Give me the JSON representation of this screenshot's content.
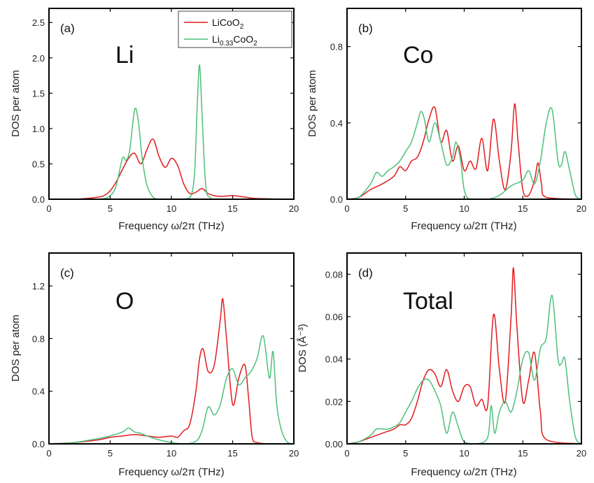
{
  "colors": {
    "LiCoO2": "#e31a1c",
    "Li033CoO2": "#4cc07a"
  },
  "legend": {
    "entries": [
      {
        "series": "LiCoO2",
        "parts": [
          "LiCoO",
          "2"
        ]
      },
      {
        "series": "Li033CoO2",
        "parts": [
          "Li",
          "0.33",
          "CoO",
          "2"
        ]
      }
    ]
  },
  "chart_data": [
    {
      "type": "line",
      "panel": "(a)",
      "element": "Li",
      "xlabel": "Frequency ω/2π (THz)",
      "ylabel": "DOS per atom",
      "xlim": [
        0,
        20
      ],
      "ylim": [
        0,
        2.7
      ],
      "xticks": [
        "0",
        "5",
        "10",
        "15",
        "20"
      ],
      "yticks": [
        "0.0",
        "0.5",
        "1.0",
        "1.5",
        "2.0",
        "2.5"
      ],
      "series": [
        {
          "name": "LiCoO2",
          "x": [
            0,
            2,
            3,
            4,
            4.5,
            5,
            5.5,
            6,
            6.5,
            7,
            7.5,
            8,
            8.5,
            9,
            9.5,
            10,
            10.5,
            11,
            11.5,
            12,
            12.5,
            13,
            13.5,
            14,
            15,
            16,
            17,
            20
          ],
          "y": [
            0,
            0,
            0.01,
            0.03,
            0.05,
            0.12,
            0.25,
            0.42,
            0.58,
            0.65,
            0.5,
            0.7,
            0.85,
            0.6,
            0.45,
            0.58,
            0.48,
            0.22,
            0.08,
            0.1,
            0.15,
            0.08,
            0.05,
            0.04,
            0.05,
            0.03,
            0.01,
            0
          ]
        },
        {
          "name": "Li0.33CoO2",
          "x": [
            0,
            4,
            5,
            5.5,
            6,
            6.3,
            6.6,
            7,
            7.3,
            7.6,
            8,
            8.5,
            9,
            10,
            11,
            11.6,
            11.9,
            12.1,
            12.3,
            12.5,
            12.8,
            13.2,
            14,
            20
          ],
          "y": [
            0,
            0,
            0.05,
            0.2,
            0.58,
            0.55,
            0.7,
            1.27,
            1.1,
            0.6,
            0.2,
            0.03,
            0,
            0,
            0,
            0.05,
            0.4,
            1.3,
            1.9,
            1.2,
            0.2,
            0.02,
            0,
            0
          ]
        }
      ]
    },
    {
      "type": "line",
      "panel": "(b)",
      "element": "Co",
      "xlabel": "Frequency ω/2π (THz)",
      "ylabel": "DOS per atom",
      "xlim": [
        0,
        20
      ],
      "ylim": [
        0,
        1.0
      ],
      "xticks": [
        "0",
        "5",
        "10",
        "15",
        "20"
      ],
      "yticks": [
        "0.0",
        "0.4",
        "0.8"
      ],
      "series": [
        {
          "name": "LiCoO2",
          "x": [
            0,
            1,
            2,
            3,
            4,
            4.5,
            5,
            5.5,
            6,
            6.5,
            7,
            7.5,
            8,
            8.5,
            9,
            9.5,
            10,
            10.5,
            11,
            11.5,
            12,
            12.5,
            13,
            13.5,
            14,
            14.3,
            14.6,
            15,
            15.5,
            16,
            16.3,
            16.6,
            17,
            20
          ],
          "y": [
            0,
            0.01,
            0.05,
            0.08,
            0.12,
            0.17,
            0.15,
            0.2,
            0.22,
            0.3,
            0.42,
            0.48,
            0.3,
            0.36,
            0.2,
            0.28,
            0.15,
            0.2,
            0.16,
            0.32,
            0.15,
            0.42,
            0.2,
            0.05,
            0.25,
            0.5,
            0.3,
            0.05,
            0.02,
            0.1,
            0.19,
            0.08,
            0.01,
            0
          ]
        },
        {
          "name": "Li0.33CoO2",
          "x": [
            0,
            1,
            2,
            2.5,
            3,
            3.5,
            4,
            4.5,
            5,
            5.5,
            6,
            6.3,
            6.6,
            7,
            7.5,
            8,
            8.5,
            9,
            9.3,
            9.7,
            10,
            10.5,
            12,
            13,
            14,
            15,
            15.5,
            16,
            16.5,
            17,
            17.5,
            18,
            18.3,
            18.6,
            19,
            19.5,
            20
          ],
          "y": [
            0,
            0.01,
            0.08,
            0.14,
            0.12,
            0.15,
            0.17,
            0.2,
            0.25,
            0.3,
            0.4,
            0.46,
            0.42,
            0.3,
            0.4,
            0.3,
            0.18,
            0.22,
            0.3,
            0.2,
            0.05,
            0,
            0,
            0.02,
            0.07,
            0.1,
            0.15,
            0.08,
            0.2,
            0.4,
            0.47,
            0.2,
            0.18,
            0.25,
            0.15,
            0.02,
            0
          ]
        }
      ]
    },
    {
      "type": "line",
      "panel": "(c)",
      "element": "O",
      "xlabel": "Frequency ω/2π (THz)",
      "ylabel": "DOS per atom",
      "xlim": [
        0,
        20
      ],
      "ylim": [
        0,
        1.45
      ],
      "xticks": [
        "0",
        "5",
        "10",
        "15",
        "20"
      ],
      "yticks": [
        "0.0",
        "0.4",
        "0.8",
        "1.2"
      ],
      "series": [
        {
          "name": "LiCoO2",
          "x": [
            0,
            2,
            4,
            5,
            6,
            7,
            8,
            9,
            10,
            10.5,
            11,
            11.5,
            12,
            12.3,
            12.6,
            13,
            13.5,
            14,
            14.2,
            14.5,
            15,
            15.5,
            16,
            16.3,
            16.6,
            17,
            18,
            20
          ],
          "y": [
            0,
            0.01,
            0.03,
            0.05,
            0.06,
            0.07,
            0.06,
            0.05,
            0.06,
            0.05,
            0.1,
            0.15,
            0.4,
            0.65,
            0.72,
            0.55,
            0.6,
            0.95,
            1.1,
            0.8,
            0.3,
            0.5,
            0.6,
            0.35,
            0.05,
            0.01,
            0,
            0
          ]
        },
        {
          "name": "Li0.33CoO2",
          "x": [
            0,
            2,
            4,
            5,
            6,
            6.5,
            7,
            7.5,
            8,
            9,
            10,
            11,
            12,
            12.5,
            13,
            13.5,
            14,
            14.5,
            15,
            15.5,
            16,
            16.5,
            17,
            17.5,
            18,
            18.3,
            18.6,
            19,
            19.5,
            20
          ],
          "y": [
            0,
            0.01,
            0.04,
            0.06,
            0.09,
            0.12,
            0.09,
            0.08,
            0.06,
            0.03,
            0.01,
            0,
            0.02,
            0.1,
            0.28,
            0.22,
            0.3,
            0.5,
            0.57,
            0.45,
            0.5,
            0.55,
            0.65,
            0.82,
            0.5,
            0.7,
            0.3,
            0.1,
            0.01,
            0
          ]
        }
      ]
    },
    {
      "type": "line",
      "panel": "(d)",
      "element": "Total",
      "xlabel": "Frequency ω/2π (THz)",
      "ylabel": "DOS (Å⁻³)",
      "xlim": [
        0,
        20
      ],
      "ylim": [
        0,
        0.09
      ],
      "xticks": [
        "0",
        "5",
        "10",
        "15",
        "20"
      ],
      "yticks": [
        "0.00",
        "0.02",
        "0.04",
        "0.06",
        "0.08"
      ],
      "series": [
        {
          "name": "LiCoO2",
          "x": [
            0,
            1,
            2,
            3,
            4,
            4.5,
            5,
            5.5,
            6,
            6.5,
            7,
            7.5,
            8,
            8.5,
            9,
            9.5,
            10,
            10.5,
            11,
            11.5,
            12,
            12.5,
            13,
            13.5,
            14,
            14.2,
            14.5,
            15,
            15.5,
            16,
            16.5,
            17,
            20
          ],
          "y": [
            0,
            0.001,
            0.003,
            0.005,
            0.007,
            0.009,
            0.009,
            0.012,
            0.02,
            0.03,
            0.035,
            0.033,
            0.027,
            0.035,
            0.025,
            0.02,
            0.027,
            0.027,
            0.018,
            0.021,
            0.018,
            0.061,
            0.035,
            0.02,
            0.06,
            0.083,
            0.055,
            0.02,
            0.03,
            0.043,
            0.015,
            0.002,
            0
          ]
        },
        {
          "name": "Li0.33CoO2",
          "x": [
            0,
            1,
            2,
            2.5,
            3,
            3.5,
            4,
            4.5,
            5,
            5.5,
            6,
            6.5,
            7,
            7.5,
            8,
            8.5,
            9,
            9.5,
            10,
            11,
            12,
            12.3,
            12.6,
            13,
            13.5,
            14,
            14.5,
            15,
            15.5,
            16,
            16.5,
            17,
            17.5,
            18,
            18.3,
            18.6,
            19,
            19.5,
            20
          ],
          "y": [
            0,
            0.001,
            0.004,
            0.007,
            0.007,
            0.007,
            0.008,
            0.01,
            0.015,
            0.02,
            0.026,
            0.03,
            0.03,
            0.025,
            0.018,
            0.005,
            0.015,
            0.008,
            0.001,
            0,
            0.003,
            0.018,
            0.005,
            0.015,
            0.02,
            0.015,
            0.025,
            0.04,
            0.043,
            0.03,
            0.045,
            0.05,
            0.07,
            0.04,
            0.038,
            0.04,
            0.02,
            0.003,
            0
          ]
        }
      ]
    }
  ]
}
